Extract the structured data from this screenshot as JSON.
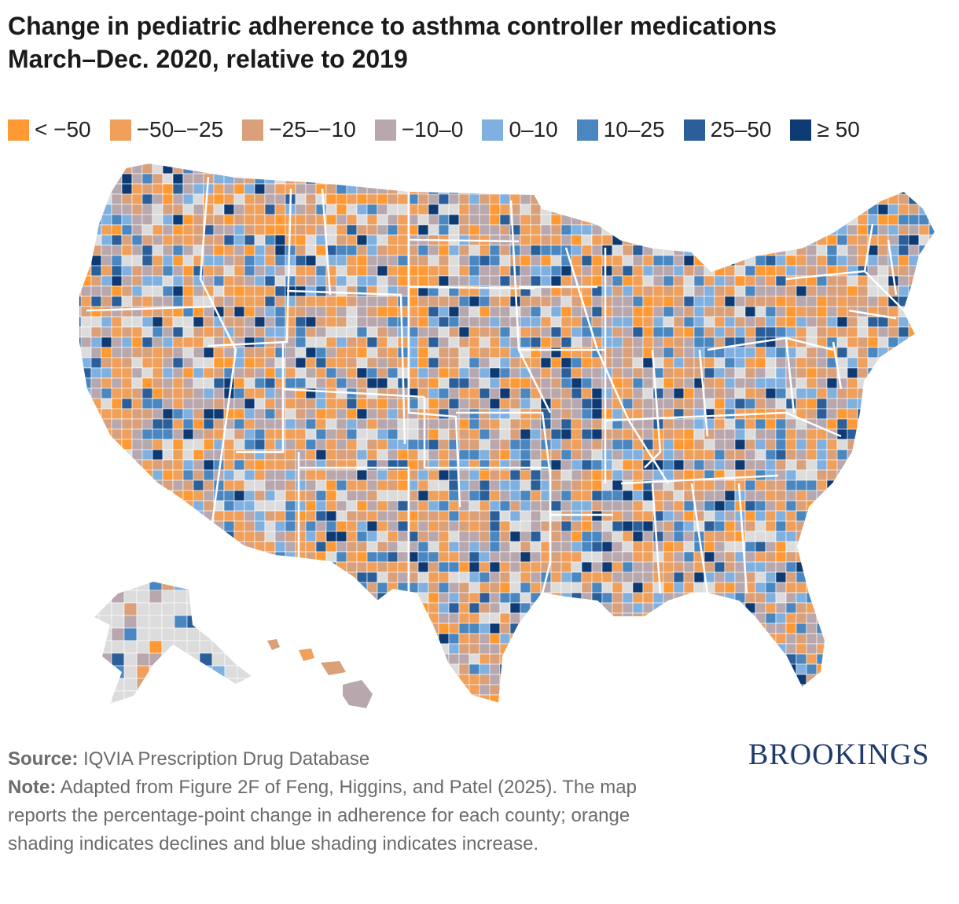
{
  "title_line1": "Change in pediatric adherence to asthma controller medications",
  "title_line2": "March–Dec. 2020, relative to 2019",
  "legend": [
    {
      "label": "< −50",
      "color": "#ff9933"
    },
    {
      "label": "−50–−25",
      "color": "#f0a05a"
    },
    {
      "label": "−25–−10",
      "color": "#d9a07a"
    },
    {
      "label": "−10–0",
      "color": "#b8a8ae"
    },
    {
      "label": "0–10",
      "color": "#7fb0e0"
    },
    {
      "label": "10–25",
      "color": "#4a86c0"
    },
    {
      "label": "25–50",
      "color": "#2a5f9a"
    },
    {
      "label": "≥ 50",
      "color": "#0d3a73"
    }
  ],
  "no_data_color": "#dcdcdc",
  "source_label": "Source:",
  "source_text": "IQVIA Prescription Drug Database",
  "note_label": "Note:",
  "note_text": "Adapted from Figure 2F of Feng, Higgins, and Patel (2025). The map reports the percentage-point change in adherence for each county; orange shading indicates declines and blue shading indicates increase.",
  "brand": "BROOKINGS"
}
